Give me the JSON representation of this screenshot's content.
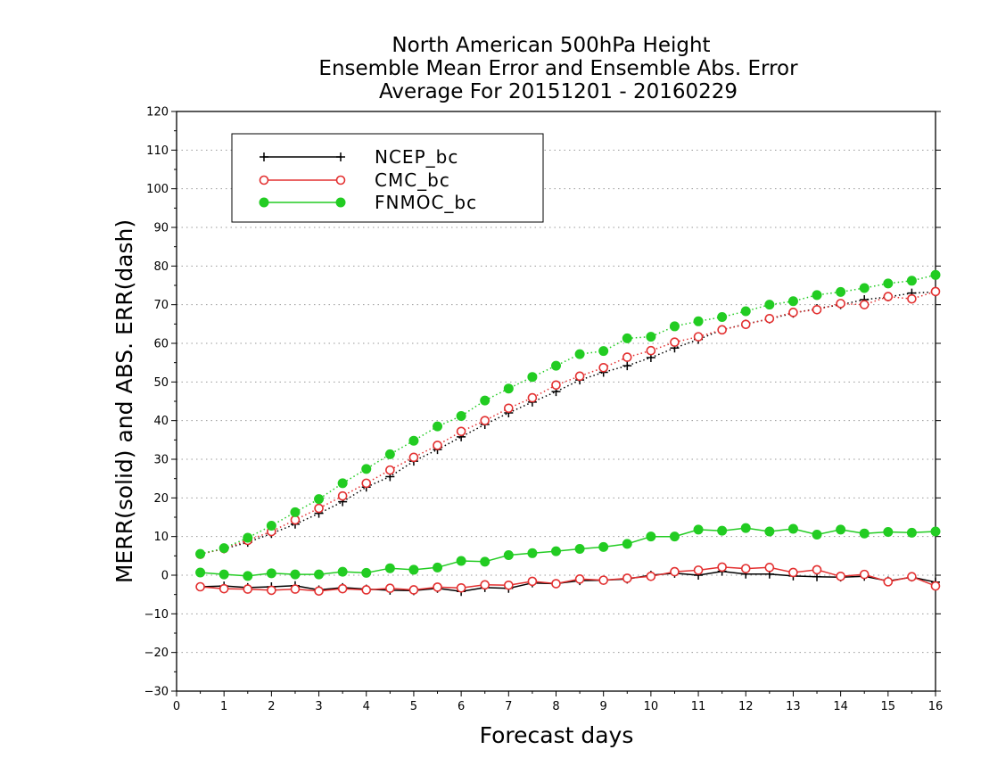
{
  "chart_data": {
    "type": "line",
    "title": [
      "North American 500hPa Height",
      "Ensemble Mean Error and Ensemble Abs. Error",
      "Average For 20151201 - 20160229"
    ],
    "xlabel": "Forecast days",
    "ylabel": "MERR(solid) and ABS. ERR(dash)",
    "xlim": [
      0,
      16
    ],
    "ylim": [
      -30,
      120
    ],
    "xticks": [
      0,
      1,
      2,
      3,
      4,
      5,
      6,
      7,
      8,
      9,
      10,
      11,
      12,
      13,
      14,
      15,
      16
    ],
    "yticks": [
      -30,
      -20,
      -10,
      0,
      10,
      20,
      30,
      40,
      50,
      60,
      70,
      80,
      90,
      100,
      110,
      120
    ],
    "grid": "horizontal dotted",
    "legend_placement": "top-left",
    "x": [
      0.5,
      1,
      1.5,
      2,
      2.5,
      3,
      3.5,
      4,
      4.5,
      5,
      5.5,
      6,
      6.5,
      7,
      7.5,
      8,
      8.5,
      9,
      9.5,
      10,
      10.5,
      11,
      11.5,
      12,
      12.5,
      13,
      13.5,
      14,
      14.5,
      15,
      15.5,
      16
    ],
    "series": [
      {
        "name": "NCEP_bc",
        "color": "#000000",
        "marker": "plus",
        "merr": [
          -3.0,
          -2.8,
          -3.2,
          -3.0,
          -2.7,
          -3.8,
          -3.2,
          -3.6,
          -3.9,
          -4.0,
          -3.4,
          -4.2,
          -3.2,
          -3.4,
          -2.0,
          -2.2,
          -1.4,
          -1.3,
          -1.0,
          0.0,
          0.5,
          0.0,
          1.0,
          0.3,
          0.3,
          -0.2,
          -0.4,
          -0.5,
          -0.3,
          -1.5,
          -0.5,
          -1.8
        ],
        "abs_err": [
          5.5,
          6.8,
          8.5,
          10.8,
          13.2,
          16.0,
          19.0,
          22.8,
          25.5,
          29.5,
          32.5,
          35.8,
          39.0,
          42.0,
          44.8,
          47.5,
          50.5,
          52.5,
          54.2,
          56.3,
          58.8,
          61.0,
          63.5,
          65.0,
          66.3,
          67.8,
          69.0,
          70.0,
          71.3,
          72.0,
          73.0,
          73.3
        ]
      },
      {
        "name": "CMC_bc",
        "color": "#e33030",
        "marker": "open-circle",
        "merr": [
          -3.0,
          -3.5,
          -3.6,
          -3.9,
          -3.6,
          -4.1,
          -3.5,
          -3.8,
          -3.4,
          -3.8,
          -3.1,
          -3.3,
          -2.5,
          -2.6,
          -1.6,
          -2.2,
          -1.0,
          -1.3,
          -0.8,
          -0.3,
          0.9,
          1.3,
          2.1,
          1.7,
          2.0,
          0.7,
          1.4,
          -0.3,
          0.2,
          -1.7,
          -0.4,
          -2.8
        ],
        "abs_err": [
          5.4,
          6.9,
          9.0,
          11.3,
          14.3,
          17.3,
          20.5,
          23.8,
          27.2,
          30.5,
          33.6,
          37.2,
          40.0,
          43.2,
          45.9,
          49.2,
          51.5,
          53.7,
          56.4,
          58.1,
          60.3,
          61.7,
          63.5,
          64.9,
          66.4,
          68.0,
          68.7,
          70.3,
          70.0,
          72.1,
          71.5,
          73.4
        ]
      },
      {
        "name": "FNMOC_bc",
        "color": "#22cc22",
        "marker": "filled-circle",
        "merr": [
          0.7,
          0.2,
          -0.2,
          0.5,
          0.2,
          0.2,
          0.9,
          0.6,
          1.8,
          1.4,
          2.0,
          3.7,
          3.5,
          5.2,
          5.7,
          6.2,
          6.8,
          7.3,
          8.1,
          10.0,
          10.0,
          11.8,
          11.5,
          12.2,
          11.3,
          12.0,
          10.5,
          11.8,
          10.8,
          11.2,
          11.0,
          11.3
        ],
        "abs_err": [
          5.5,
          7.0,
          9.7,
          12.8,
          16.3,
          19.7,
          23.8,
          27.5,
          31.3,
          34.8,
          38.5,
          41.2,
          45.2,
          48.3,
          51.3,
          54.2,
          57.2,
          58.0,
          61.3,
          61.7,
          64.4,
          65.7,
          66.8,
          68.3,
          70.0,
          70.9,
          72.5,
          73.3,
          74.3,
          75.5,
          76.2,
          77.7
        ]
      }
    ]
  }
}
